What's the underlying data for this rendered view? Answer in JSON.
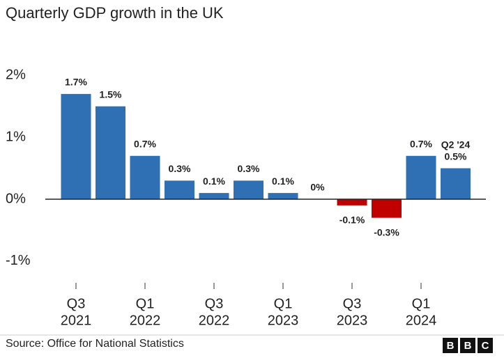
{
  "chart_data": {
    "type": "bar",
    "title": "Quarterly GDP growth in the UK",
    "categories": [
      [
        "Q3",
        "2021"
      ],
      null,
      [
        "Q1",
        "2022"
      ],
      null,
      [
        "Q3",
        "2022"
      ],
      null,
      [
        "Q1",
        "2023"
      ],
      null,
      [
        "Q3",
        "2023"
      ],
      null,
      [
        "Q1",
        "2024"
      ],
      null
    ],
    "values": [
      1.7,
      1.5,
      0.7,
      0.3,
      0.1,
      0.3,
      0.1,
      0,
      -0.1,
      -0.3,
      0.7,
      0.5
    ],
    "value_labels": [
      "1.7%",
      "1.5%",
      "0.7%",
      "0.3%",
      "0.1%",
      "0.3%",
      "0.1%",
      "0%",
      "-0.1%",
      "-0.3%",
      "0.7%",
      "0.5%"
    ],
    "color": "#2f6fb3",
    "negative_color": "#c00000",
    "annotation": "Q2 '24",
    "ylim": [
      -1.35,
      2.25
    ],
    "yticks": [
      {
        "value": -1,
        "label": "-1%"
      },
      {
        "value": 0,
        "label": "0%"
      },
      {
        "value": 1,
        "label": "1%"
      },
      {
        "value": 2,
        "label": "2%"
      }
    ],
    "source": "Source: Office for National Statistics",
    "logo": [
      "B",
      "B",
      "C"
    ]
  }
}
